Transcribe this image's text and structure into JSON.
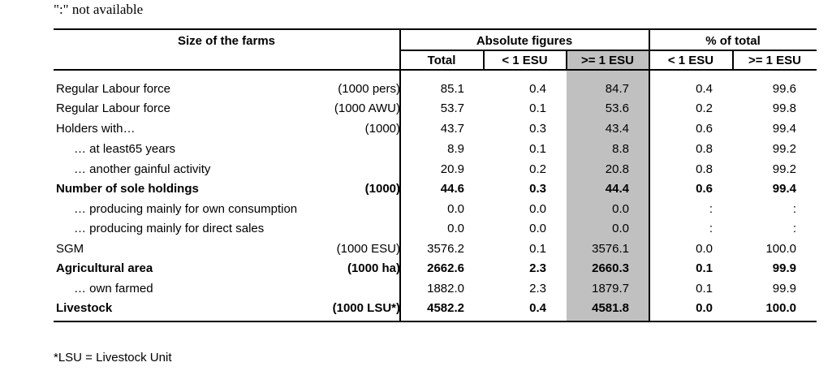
{
  "note": "\":\" not available",
  "footnote": "*LSU = Livestock Unit",
  "header": {
    "size": "Size of the farms",
    "absolute": "Absolute figures",
    "percent": "% of total",
    "total": "Total",
    "lt1": "< 1 ESU",
    "ge1": ">= 1 ESU",
    "pct_lt1": "< 1 ESU",
    "pct_ge1": ">= 1 ESU"
  },
  "rows": [
    {
      "label": "Regular Labour force",
      "unit": "(1000 pers)",
      "total": "85.1",
      "lt1": "0.4",
      "ge1": "84.7",
      "pct_lt1": "0.4",
      "pct_ge1": "99.6"
    },
    {
      "label": "Regular Labour force",
      "unit": "(1000 AWU)",
      "total": "53.7",
      "lt1": "0.1",
      "ge1": "53.6",
      "pct_lt1": "0.2",
      "pct_ge1": "99.8"
    },
    {
      "label": "Holders with…",
      "unit": "(1000)",
      "total": "43.7",
      "lt1": "0.3",
      "ge1": "43.4",
      "pct_lt1": "0.6",
      "pct_ge1": "99.4"
    },
    {
      "label": "… at least65 years",
      "unit": "",
      "total": "8.9",
      "lt1": "0.1",
      "ge1": "8.8",
      "pct_lt1": "0.8",
      "pct_ge1": "99.2"
    },
    {
      "label": "… another gainful activity",
      "unit": "",
      "total": "20.9",
      "lt1": "0.2",
      "ge1": "20.8",
      "pct_lt1": "0.8",
      "pct_ge1": "99.2"
    },
    {
      "label": "Number of sole holdings",
      "unit": "(1000)",
      "total": "44.6",
      "lt1": "0.3",
      "ge1": "44.4",
      "pct_lt1": "0.6",
      "pct_ge1": "99.4"
    },
    {
      "label": "… producing mainly for own consumption",
      "unit": "",
      "total": "0.0",
      "lt1": "0.0",
      "ge1": "0.0",
      "pct_lt1": ":",
      "pct_ge1": ":"
    },
    {
      "label": "… producing mainly for direct sales",
      "unit": "",
      "total": "0.0",
      "lt1": "0.0",
      "ge1": "0.0",
      "pct_lt1": ":",
      "pct_ge1": ":"
    },
    {
      "label": "SGM",
      "unit": "(1000 ESU)",
      "total": "3576.2",
      "lt1": "0.1",
      "ge1": "3576.1",
      "pct_lt1": "0.0",
      "pct_ge1": "100.0"
    },
    {
      "label": "Agricultural area",
      "unit": "(1000 ha)",
      "total": "2662.6",
      "lt1": "2.3",
      "ge1": "2660.3",
      "pct_lt1": "0.1",
      "pct_ge1": "99.9"
    },
    {
      "label": "… own farmed",
      "unit": "",
      "total": "1882.0",
      "lt1": "2.3",
      "ge1": "1879.7",
      "pct_lt1": "0.1",
      "pct_ge1": "99.9"
    },
    {
      "label": "Livestock",
      "unit": "(1000 LSU*)",
      "total": "4582.2",
      "lt1": "0.4",
      "ge1": "4581.8",
      "pct_lt1": "0.0",
      "pct_ge1": "100.0"
    }
  ]
}
